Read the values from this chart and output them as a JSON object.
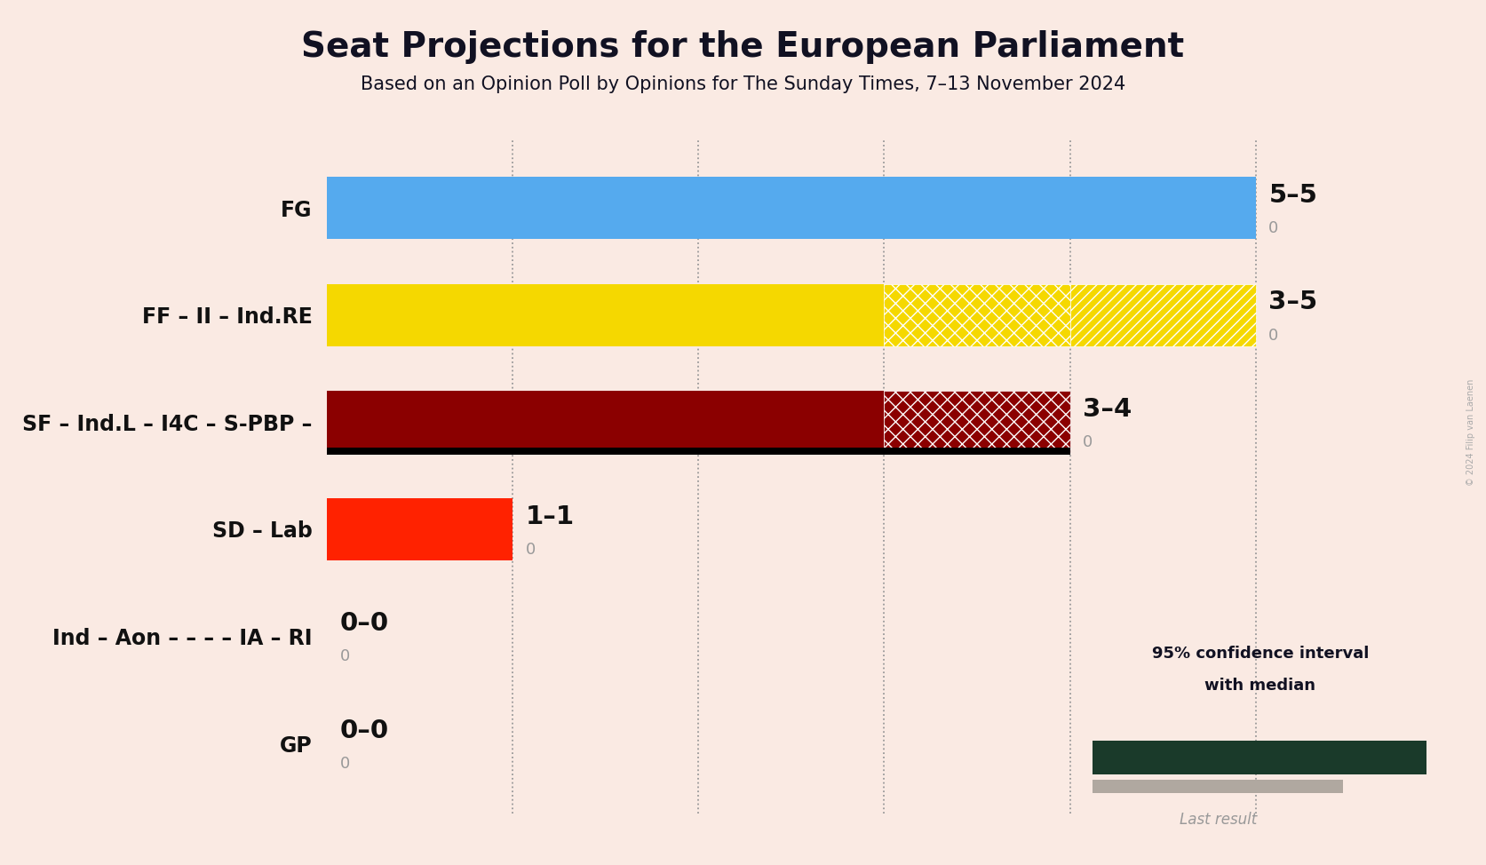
{
  "title": "Seat Projections for the European Parliament",
  "subtitle": "Based on an Opinion Poll by Opinions for The Sunday Times, 7–13 November 2024",
  "background_color": "#faeae3",
  "parties": [
    "FG",
    "FF – II – Ind.RE",
    "SF – Ind.L – I4C – S-PBP –",
    "SD – Lab",
    "Ind – Aon – – – – IA – RI",
    "GP"
  ],
  "median_seats": [
    5,
    3,
    3,
    1,
    0,
    0
  ],
  "ci_low": [
    5,
    3,
    3,
    1,
    0,
    0
  ],
  "ci_high": [
    5,
    5,
    4,
    1,
    0,
    0
  ],
  "last_result": [
    0,
    0,
    0,
    0,
    0,
    0
  ],
  "bar_colors": [
    "#55aaee",
    "#f5d800",
    "#8b0000",
    "#ff2200",
    "#faeae3",
    "#faeae3"
  ],
  "label_range": [
    "5–5",
    "3–5",
    "3–4",
    "1–1",
    "0–0",
    "0–0"
  ],
  "xlim": [
    0,
    5.6
  ],
  "dotted_lines": [
    1,
    2,
    3,
    4,
    5
  ],
  "title_fontsize": 28,
  "subtitle_fontsize": 15,
  "party_fontsize": 17,
  "label_fontsize": 21,
  "last_label_fontsize": 13,
  "watermark": "© 2024 Filip van Laenen",
  "legend_text1": "95% confidence interval",
  "legend_text2": "with median",
  "legend_last": "Last result",
  "legend_color": "#1a3a2a"
}
